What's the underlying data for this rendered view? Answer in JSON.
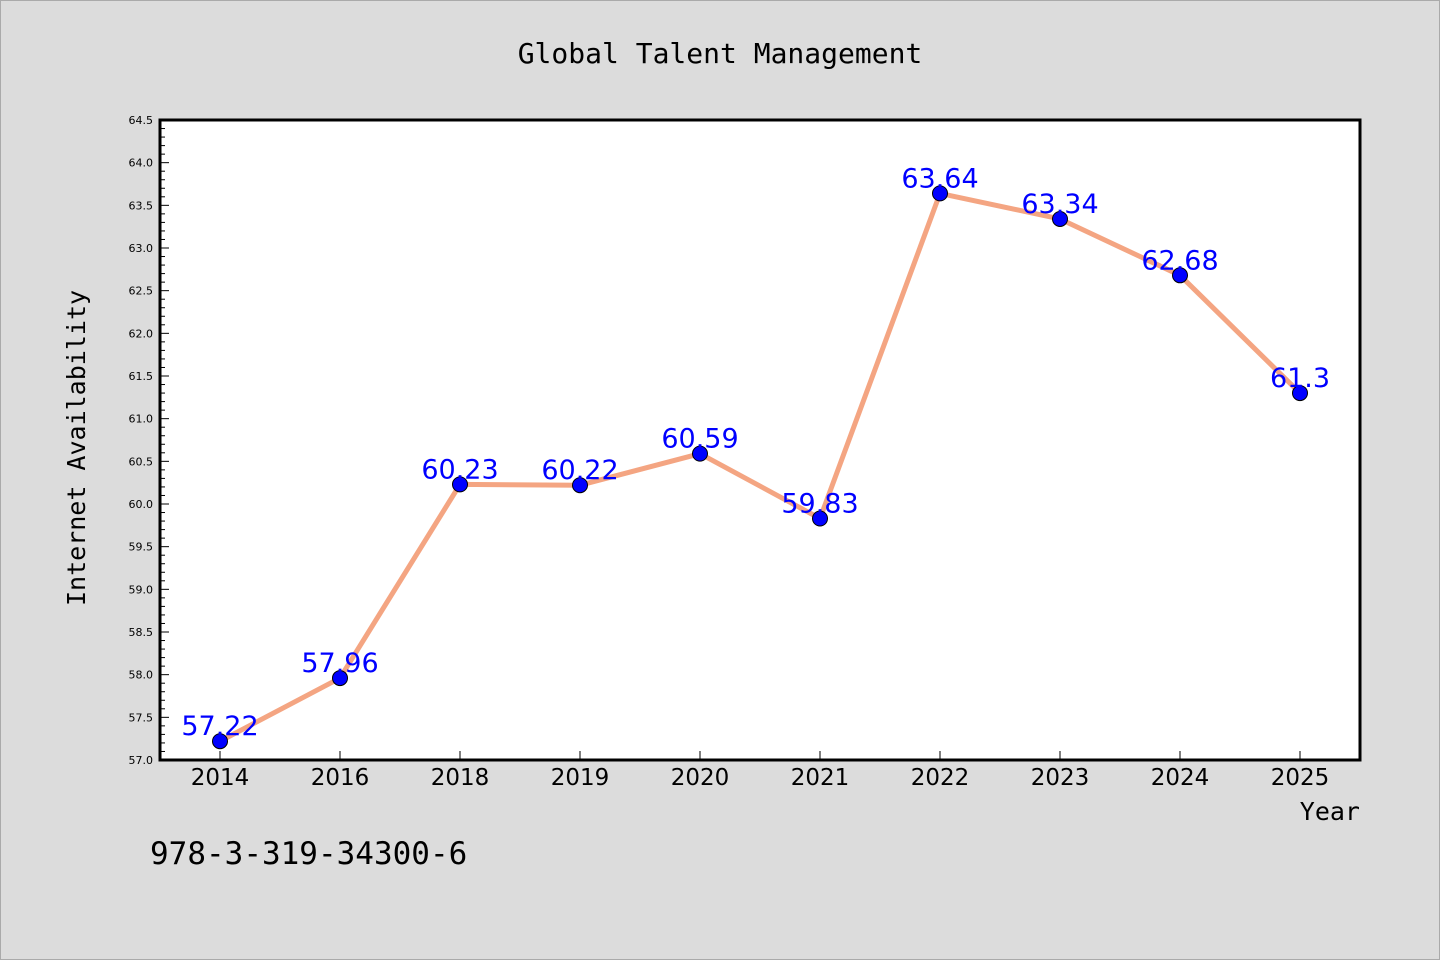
{
  "chart_data": {
    "type": "line",
    "title": "Global Talent Management",
    "xlabel": "Year",
    "ylabel": "Internet Availability",
    "categories": [
      "2014",
      "2016",
      "2018",
      "2019",
      "2020",
      "2021",
      "2022",
      "2023",
      "2024",
      "2025"
    ],
    "series": [
      {
        "values": [
          57.22,
          57.96,
          60.23,
          60.22,
          60.59,
          59.83,
          63.64,
          63.34,
          62.68,
          61.3
        ],
        "data_labels": [
          "57.22",
          "57.96",
          "60.23",
          "60.22",
          "60.59",
          "59.83",
          "63.64",
          "63.34",
          "62.68",
          "61.3"
        ],
        "line_color": "#f4a582",
        "marker_color": "#0000ff"
      }
    ],
    "ylim": [
      57.0,
      64.5
    ],
    "yticks": [
      "57.0",
      "57.5",
      "58.0",
      "58.5",
      "59.0",
      "59.5",
      "60.0",
      "60.5",
      "61.0",
      "61.5",
      "62.0",
      "62.5",
      "63.0",
      "63.5",
      "64.0",
      "64.5"
    ],
    "grid": false,
    "legend": "none",
    "colors": {
      "background": "#dcdcdc",
      "plot_background": "#ffffff",
      "label_color": "#0000ff"
    }
  },
  "footer": {
    "isbn": "978-3-319-34300-6"
  }
}
